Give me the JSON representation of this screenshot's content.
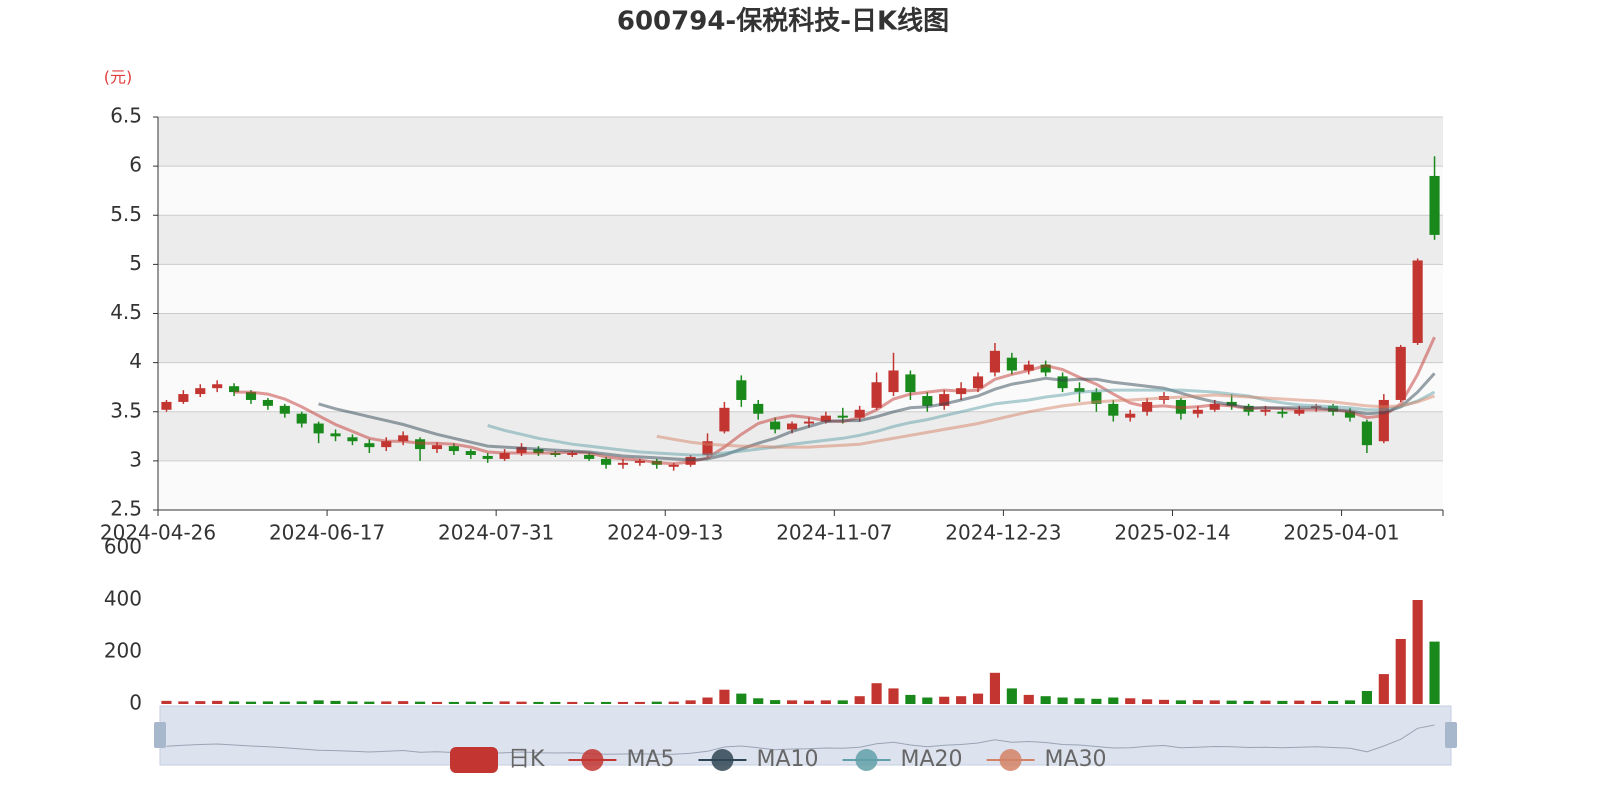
{
  "chart_data": {
    "type": "candlestick",
    "title": "600794-保税科技-日K线图",
    "y_unit_label": "(元)",
    "categories": [
      "2024-04-26",
      null,
      null,
      null,
      null,
      null,
      null,
      null,
      null,
      null,
      "2024-06-17",
      null,
      null,
      null,
      null,
      null,
      null,
      null,
      null,
      null,
      "2024-07-31",
      null,
      null,
      null,
      null,
      null,
      null,
      null,
      null,
      null,
      "2024-09-13",
      null,
      null,
      null,
      null,
      null,
      null,
      null,
      null,
      null,
      "2024-11-07",
      null,
      null,
      null,
      null,
      null,
      null,
      null,
      null,
      null,
      "2024-12-23",
      null,
      null,
      null,
      null,
      null,
      null,
      null,
      null,
      null,
      "2025-02-14",
      null,
      null,
      null,
      null,
      null,
      null,
      null,
      null,
      null,
      "2025-04-01",
      null,
      null,
      null,
      null,
      null
    ],
    "ylim": [
      2.5,
      6.5
    ],
    "yticks": [
      2.5,
      3,
      3.5,
      4,
      4.5,
      5,
      5.5,
      6,
      6.5
    ],
    "grid": true,
    "line_opacity": 0.5,
    "series": [
      {
        "name": "日K",
        "type": "candlestick",
        "color": "#c23531",
        "down_color": "#19891b",
        "values": [
          [
            3.52,
            3.6,
            3.5,
            3.62
          ],
          [
            3.6,
            3.68,
            3.58,
            3.72
          ],
          [
            3.68,
            3.74,
            3.65,
            3.78
          ],
          [
            3.74,
            3.78,
            3.7,
            3.82
          ],
          [
            3.76,
            3.7,
            3.66,
            3.79
          ],
          [
            3.7,
            3.62,
            3.58,
            3.72
          ],
          [
            3.62,
            3.56,
            3.52,
            3.64
          ],
          [
            3.56,
            3.48,
            3.44,
            3.58
          ],
          [
            3.48,
            3.38,
            3.34,
            3.5
          ],
          [
            3.38,
            3.28,
            3.18,
            3.4
          ],
          [
            3.28,
            3.25,
            3.2,
            3.32
          ],
          [
            3.24,
            3.2,
            3.16,
            3.27
          ],
          [
            3.18,
            3.14,
            3.08,
            3.22
          ],
          [
            3.14,
            3.2,
            3.1,
            3.24
          ],
          [
            3.2,
            3.26,
            3.16,
            3.3
          ],
          [
            3.22,
            3.12,
            3.0,
            3.24
          ],
          [
            3.12,
            3.16,
            3.08,
            3.19
          ],
          [
            3.15,
            3.1,
            3.06,
            3.18
          ],
          [
            3.1,
            3.06,
            3.02,
            3.12
          ],
          [
            3.05,
            3.02,
            2.98,
            3.08
          ],
          [
            3.02,
            3.08,
            3.0,
            3.12
          ],
          [
            3.08,
            3.14,
            3.05,
            3.18
          ],
          [
            3.12,
            3.08,
            3.05,
            3.15
          ],
          [
            3.08,
            3.06,
            3.04,
            3.1
          ],
          [
            3.06,
            3.08,
            3.04,
            3.1
          ],
          [
            3.06,
            3.02,
            3.0,
            3.08
          ],
          [
            3.02,
            2.96,
            2.92,
            3.04
          ],
          [
            2.96,
            2.98,
            2.92,
            3.02
          ],
          [
            2.98,
            3.0,
            2.95,
            3.02
          ],
          [
            3.0,
            2.96,
            2.92,
            3.02
          ],
          [
            2.94,
            2.96,
            2.9,
            2.98
          ],
          [
            2.96,
            3.04,
            2.94,
            3.06
          ],
          [
            3.06,
            3.2,
            3.04,
            3.28
          ],
          [
            3.3,
            3.54,
            3.28,
            3.6
          ],
          [
            3.82,
            3.62,
            3.55,
            3.87
          ],
          [
            3.58,
            3.48,
            3.42,
            3.62
          ],
          [
            3.4,
            3.32,
            3.28,
            3.44
          ],
          [
            3.32,
            3.38,
            3.28,
            3.4
          ],
          [
            3.38,
            3.4,
            3.34,
            3.44
          ],
          [
            3.4,
            3.46,
            3.38,
            3.5
          ],
          [
            3.46,
            3.44,
            3.38,
            3.54
          ],
          [
            3.44,
            3.52,
            3.4,
            3.56
          ],
          [
            3.54,
            3.8,
            3.52,
            3.9
          ],
          [
            3.7,
            3.92,
            3.66,
            4.1
          ],
          [
            3.88,
            3.7,
            3.62,
            3.92
          ],
          [
            3.66,
            3.56,
            3.5,
            3.7
          ],
          [
            3.56,
            3.68,
            3.52,
            3.72
          ],
          [
            3.68,
            3.74,
            3.62,
            3.8
          ],
          [
            3.74,
            3.86,
            3.7,
            3.9
          ],
          [
            3.9,
            4.12,
            3.86,
            4.2
          ],
          [
            4.05,
            3.92,
            3.88,
            4.1
          ],
          [
            3.92,
            3.98,
            3.88,
            4.02
          ],
          [
            3.98,
            3.9,
            3.86,
            4.02
          ],
          [
            3.86,
            3.74,
            3.7,
            3.9
          ],
          [
            3.74,
            3.7,
            3.6,
            3.8
          ],
          [
            3.7,
            3.58,
            3.5,
            3.74
          ],
          [
            3.58,
            3.46,
            3.4,
            3.62
          ],
          [
            3.44,
            3.48,
            3.4,
            3.52
          ],
          [
            3.5,
            3.6,
            3.46,
            3.64
          ],
          [
            3.62,
            3.66,
            3.58,
            3.7
          ],
          [
            3.62,
            3.48,
            3.42,
            3.64
          ],
          [
            3.48,
            3.52,
            3.44,
            3.56
          ],
          [
            3.52,
            3.58,
            3.5,
            3.62
          ],
          [
            3.6,
            3.56,
            3.52,
            3.68
          ],
          [
            3.56,
            3.5,
            3.46,
            3.58
          ],
          [
            3.5,
            3.52,
            3.46,
            3.56
          ],
          [
            3.5,
            3.48,
            3.44,
            3.54
          ],
          [
            3.48,
            3.52,
            3.46,
            3.56
          ],
          [
            3.54,
            3.56,
            3.5,
            3.58
          ],
          [
            3.56,
            3.5,
            3.46,
            3.58
          ],
          [
            3.5,
            3.44,
            3.4,
            3.54
          ],
          [
            3.4,
            3.16,
            3.08,
            3.42
          ],
          [
            3.2,
            3.62,
            3.18,
            3.68
          ],
          [
            3.62,
            4.16,
            3.6,
            4.18
          ],
          [
            4.2,
            5.04,
            4.18,
            5.06
          ],
          [
            5.9,
            5.3,
            5.25,
            6.1
          ]
        ]
      },
      {
        "name": "MA5",
        "type": "line",
        "color": "#c23531",
        "values": [
          null,
          null,
          null,
          null,
          3.7,
          3.7,
          3.68,
          3.63,
          3.55,
          3.46,
          3.37,
          3.3,
          3.23,
          3.2,
          3.2,
          3.18,
          3.18,
          3.17,
          3.14,
          3.09,
          3.08,
          3.08,
          3.08,
          3.08,
          3.09,
          3.08,
          3.04,
          3.02,
          3.01,
          2.98,
          2.97,
          2.99,
          3.03,
          3.14,
          3.27,
          3.38,
          3.43,
          3.46,
          3.44,
          3.41,
          3.4,
          3.44,
          3.52,
          3.63,
          3.68,
          3.7,
          3.72,
          3.71,
          3.72,
          3.83,
          3.88,
          3.92,
          3.97,
          3.93,
          3.85,
          3.78,
          3.68,
          3.59,
          3.55,
          3.56,
          3.54,
          3.55,
          3.57,
          3.56,
          3.53,
          3.54,
          3.53,
          3.52,
          3.52,
          3.52,
          3.5,
          3.44,
          3.46,
          3.58,
          3.88,
          4.26
        ]
      },
      {
        "name": "MA10",
        "type": "line",
        "color": "#2f4554",
        "values": [
          null,
          null,
          null,
          null,
          null,
          null,
          null,
          null,
          null,
          3.58,
          3.53,
          3.49,
          3.45,
          3.41,
          3.37,
          3.32,
          3.27,
          3.23,
          3.19,
          3.15,
          3.14,
          3.13,
          3.12,
          3.11,
          3.1,
          3.09,
          3.07,
          3.05,
          3.04,
          3.03,
          3.02,
          3.01,
          3.02,
          3.06,
          3.12,
          3.18,
          3.23,
          3.3,
          3.35,
          3.4,
          3.41,
          3.41,
          3.45,
          3.5,
          3.54,
          3.55,
          3.58,
          3.62,
          3.66,
          3.73,
          3.78,
          3.81,
          3.84,
          3.82,
          3.83,
          3.83,
          3.8,
          3.78,
          3.76,
          3.74,
          3.69,
          3.64,
          3.6,
          3.57,
          3.54,
          3.54,
          3.54,
          3.54,
          3.54,
          3.52,
          3.51,
          3.48,
          3.49,
          3.55,
          3.7,
          3.89
        ]
      },
      {
        "name": "MA20",
        "type": "line",
        "color": "#61a0a8",
        "values": [
          null,
          null,
          null,
          null,
          null,
          null,
          null,
          null,
          null,
          null,
          null,
          null,
          null,
          null,
          null,
          null,
          null,
          null,
          null,
          3.36,
          3.31,
          3.27,
          3.23,
          3.2,
          3.17,
          3.15,
          3.13,
          3.11,
          3.09,
          3.08,
          3.07,
          3.06,
          3.06,
          3.08,
          3.1,
          3.12,
          3.14,
          3.17,
          3.19,
          3.21,
          3.23,
          3.26,
          3.3,
          3.35,
          3.39,
          3.42,
          3.46,
          3.5,
          3.54,
          3.58,
          3.6,
          3.62,
          3.65,
          3.67,
          3.7,
          3.71,
          3.72,
          3.72,
          3.72,
          3.72,
          3.72,
          3.71,
          3.7,
          3.68,
          3.66,
          3.62,
          3.59,
          3.57,
          3.56,
          3.55,
          3.54,
          3.52,
          3.52,
          3.55,
          3.61,
          3.7
        ]
      },
      {
        "name": "MA30",
        "type": "line",
        "color": "#d48265",
        "values": [
          null,
          null,
          null,
          null,
          null,
          null,
          null,
          null,
          null,
          null,
          null,
          null,
          null,
          null,
          null,
          null,
          null,
          null,
          null,
          null,
          null,
          null,
          null,
          null,
          null,
          null,
          null,
          null,
          null,
          3.25,
          3.22,
          3.19,
          3.17,
          3.16,
          3.15,
          3.15,
          3.14,
          3.14,
          3.14,
          3.15,
          3.16,
          3.17,
          3.2,
          3.23,
          3.26,
          3.29,
          3.32,
          3.35,
          3.38,
          3.42,
          3.46,
          3.5,
          3.53,
          3.56,
          3.58,
          3.6,
          3.61,
          3.62,
          3.63,
          3.64,
          3.65,
          3.66,
          3.67,
          3.66,
          3.65,
          3.64,
          3.63,
          3.62,
          3.61,
          3.6,
          3.58,
          3.56,
          3.55,
          3.56,
          3.6,
          3.66
        ]
      }
    ],
    "volume": {
      "ylim": [
        0,
        600
      ],
      "yticks": [
        0,
        200,
        400,
        600
      ],
      "values": [
        12,
        10,
        11,
        12,
        10,
        9,
        10,
        9,
        10,
        14,
        12,
        10,
        9,
        10,
        11,
        9,
        8,
        8,
        9,
        8,
        10,
        9,
        8,
        8,
        8,
        7,
        8,
        8,
        8,
        9,
        9,
        14,
        25,
        55,
        40,
        22,
        15,
        14,
        13,
        14,
        14,
        30,
        80,
        60,
        35,
        25,
        28,
        30,
        40,
        120,
        60,
        35,
        30,
        25,
        22,
        20,
        25,
        22,
        18,
        16,
        14,
        15,
        14,
        13,
        12,
        13,
        12,
        13,
        12,
        12,
        14,
        50,
        115,
        250,
        400,
        240
      ]
    }
  }
}
